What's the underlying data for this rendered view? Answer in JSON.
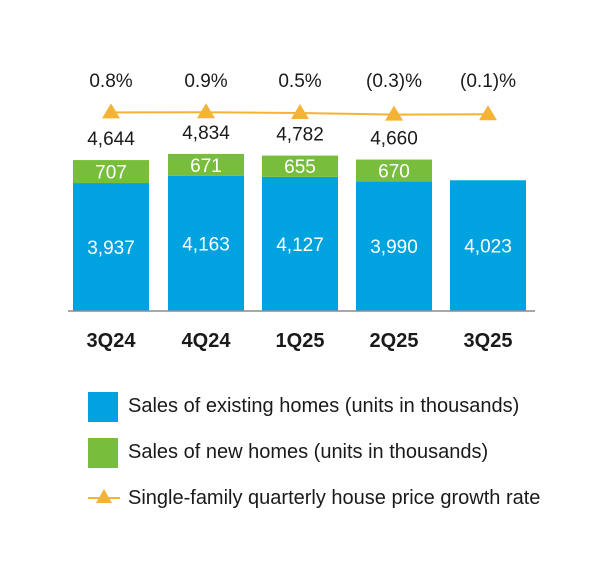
{
  "chart_data": {
    "type": "bar",
    "stacked": true,
    "categories": [
      "3Q24",
      "4Q24",
      "1Q25",
      "2Q25",
      "3Q25"
    ],
    "series": [
      {
        "name": "Sales of existing homes (units in thousands)",
        "values": [
          3937,
          4163,
          4127,
          3990,
          4023
        ],
        "color": "#00a3e0"
      },
      {
        "name": "Sales of new homes (units in thousands)",
        "values": [
          707,
          671,
          655,
          670,
          null
        ],
        "color": "#78be3c"
      }
    ],
    "totals": [
      4644,
      4834,
      4782,
      4660,
      null
    ],
    "total_labels": [
      "4,644",
      "4,834",
      "4,782",
      "4,660",
      ""
    ],
    "existing_labels": [
      "3,937",
      "4,163",
      "4,127",
      "3,990",
      "4,023"
    ],
    "new_labels": [
      "707",
      "671",
      "655",
      "670",
      ""
    ],
    "line_series": {
      "name": "Single-family quarterly house price growth rate",
      "values": [
        0.8,
        0.9,
        0.5,
        -0.3,
        -0.1
      ],
      "labels": [
        "0.8%",
        "0.9%",
        "0.5%",
        "(0.3)%",
        "(0.1)%"
      ],
      "color": "#f5b335"
    },
    "ylim": [
      0,
      5500
    ]
  },
  "legend": {
    "existing": "Sales of existing homes (units in thousands)",
    "new": "Sales of new homes (units in thousands)",
    "growth": "Single-family quarterly house price growth rate"
  },
  "colors": {
    "existing": "#00a3e0",
    "new": "#78be3c",
    "line": "#f5b335",
    "axis": "#8c8c8c"
  }
}
